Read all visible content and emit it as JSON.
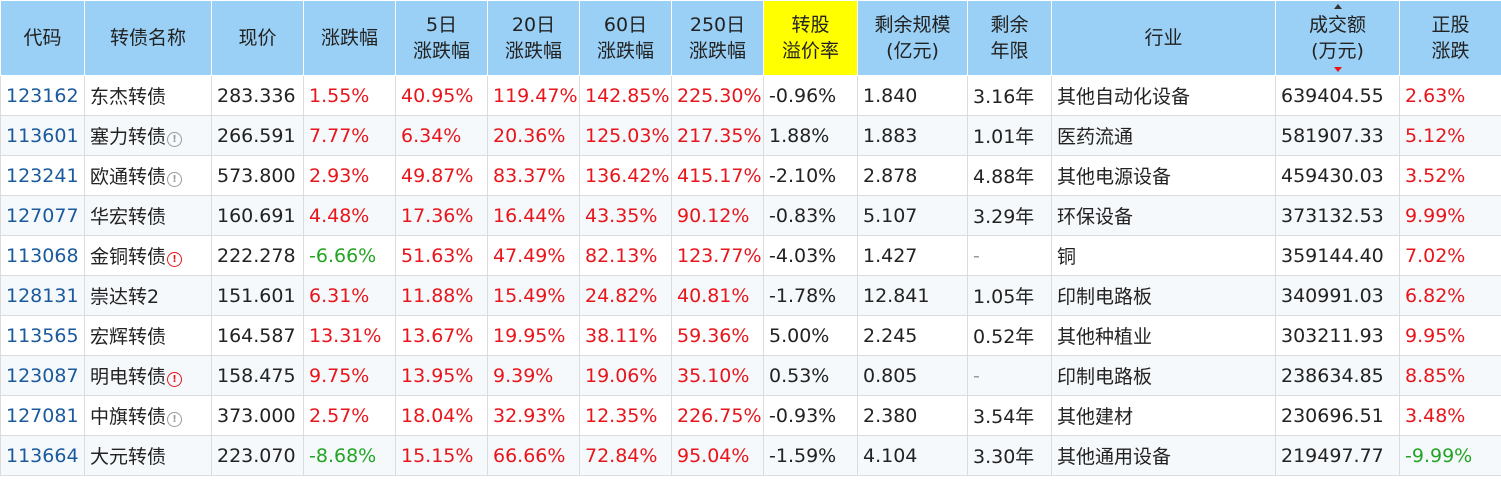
{
  "headers": {
    "code": "代码",
    "name": "转债名称",
    "price": "现价",
    "change": "涨跌幅",
    "d5": [
      "5日",
      "涨跌幅"
    ],
    "d20": [
      "20日",
      "涨跌幅"
    ],
    "d60": [
      "60日",
      "涨跌幅"
    ],
    "d250": [
      "250日",
      "涨跌幅"
    ],
    "premium": [
      "转股",
      "溢价率"
    ],
    "scale": [
      "剩余规模",
      "(亿元)"
    ],
    "remain": [
      "剩余",
      "年限"
    ],
    "industry": "行业",
    "volume": [
      "成交额",
      "(万元)"
    ],
    "stock": [
      "正股",
      "涨跌"
    ]
  },
  "highlight_color": "#ffff00",
  "up_color": "#e8151a",
  "down_color": "#23a423",
  "rows": [
    {
      "code": "123162",
      "name": "东杰转债",
      "icon": "",
      "price": "283.336",
      "change": "1.55%",
      "d5": "40.95%",
      "d20": "119.47%",
      "d60": "142.85%",
      "d250": "225.30%",
      "premium": "-0.96%",
      "scale": "1.840",
      "remain": "3.16年",
      "industry": "其他自动化设备",
      "volume": "639404.55",
      "stock": "2.63%"
    },
    {
      "code": "113601",
      "name": "塞力转债",
      "icon": "info-grey-icon",
      "price": "266.591",
      "change": "7.77%",
      "d5": "6.34%",
      "d20": "20.36%",
      "d60": "125.03%",
      "d250": "217.35%",
      "premium": "1.88%",
      "scale": "1.883",
      "remain": "1.01年",
      "industry": "医药流通",
      "volume": "581907.33",
      "stock": "5.12%"
    },
    {
      "code": "123241",
      "name": "欧通转债",
      "icon": "info-grey-icon",
      "price": "573.800",
      "change": "2.93%",
      "d5": "49.87%",
      "d20": "83.37%",
      "d60": "136.42%",
      "d250": "415.17%",
      "premium": "-2.10%",
      "scale": "2.878",
      "remain": "4.88年",
      "industry": "其他电源设备",
      "volume": "459430.03",
      "stock": "3.52%"
    },
    {
      "code": "127077",
      "name": "华宏转债",
      "icon": "",
      "price": "160.691",
      "change": "4.48%",
      "d5": "17.36%",
      "d20": "16.44%",
      "d60": "43.35%",
      "d250": "90.12%",
      "premium": "-0.83%",
      "scale": "5.107",
      "remain": "3.29年",
      "industry": "环保设备",
      "volume": "373132.53",
      "stock": "9.99%"
    },
    {
      "code": "113068",
      "name": "金铜转债",
      "icon": "alert-red-icon",
      "price": "222.278",
      "change": "-6.66%",
      "d5": "51.63%",
      "d20": "47.49%",
      "d60": "82.13%",
      "d250": "123.77%",
      "premium": "-4.03%",
      "scale": "1.427",
      "remain": "-",
      "industry": "铜",
      "volume": "359144.40",
      "stock": "7.02%"
    },
    {
      "code": "128131",
      "name": "崇达转2",
      "icon": "",
      "price": "151.601",
      "change": "6.31%",
      "d5": "11.88%",
      "d20": "15.49%",
      "d60": "24.82%",
      "d250": "40.81%",
      "premium": "-1.78%",
      "scale": "12.841",
      "remain": "1.05年",
      "industry": "印制电路板",
      "volume": "340991.03",
      "stock": "6.82%"
    },
    {
      "code": "113565",
      "name": "宏辉转债",
      "icon": "",
      "price": "164.587",
      "change": "13.31%",
      "d5": "13.67%",
      "d20": "19.95%",
      "d60": "38.11%",
      "d250": "59.36%",
      "premium": "5.00%",
      "scale": "2.245",
      "remain": "0.52年",
      "industry": "其他种植业",
      "volume": "303211.93",
      "stock": "9.95%"
    },
    {
      "code": "123087",
      "name": "明电转债",
      "icon": "alert-red-icon",
      "price": "158.475",
      "change": "9.75%",
      "d5": "13.95%",
      "d20": "9.39%",
      "d60": "19.06%",
      "d250": "35.10%",
      "premium": "0.53%",
      "scale": "0.805",
      "remain": "-",
      "industry": "印制电路板",
      "volume": "238634.85",
      "stock": "8.85%"
    },
    {
      "code": "127081",
      "name": "中旗转债",
      "icon": "info-grey-icon",
      "price": "373.000",
      "change": "2.57%",
      "d5": "18.04%",
      "d20": "32.93%",
      "d60": "12.35%",
      "d250": "226.75%",
      "premium": "-0.93%",
      "scale": "2.380",
      "remain": "3.54年",
      "industry": "其他建材",
      "volume": "230696.51",
      "stock": "3.48%"
    },
    {
      "code": "113664",
      "name": "大元转债",
      "icon": "",
      "price": "223.070",
      "change": "-8.68%",
      "d5": "15.15%",
      "d20": "66.66%",
      "d60": "72.84%",
      "d250": "95.04%",
      "premium": "-1.59%",
      "scale": "4.104",
      "remain": "3.30年",
      "industry": "其他通用设备",
      "volume": "219497.77",
      "stock": "-9.99%"
    }
  ]
}
